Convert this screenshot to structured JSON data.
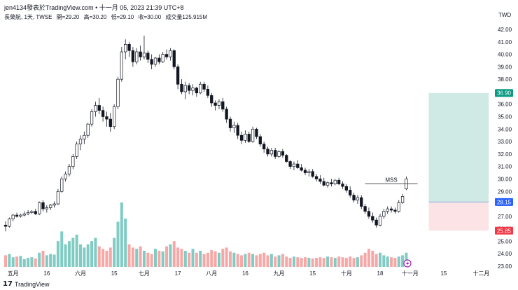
{
  "header": {
    "title": "jen4134發表於TradingView.com • 十一月 05, 2023 21:39 UTC+8"
  },
  "legend": {
    "symbol": "長榮航, 1天, TWSE",
    "open": "開=29.20",
    "high": "高=30.20",
    "low": "低=29.10",
    "close": "收=30.00",
    "volume": "成交量125.915M"
  },
  "currency": "TWD",
  "footer": {
    "logo_glyph": "𝟭𝟳",
    "brand": "TradingView"
  },
  "colors": {
    "up": "#26a69a",
    "down": "#ef5350",
    "body": "#131722",
    "vol_up": "#80cbc4",
    "vol_down": "#f7a8a6",
    "target": "#cfeae4",
    "stop": "#fce4e6",
    "entry_line": "#8fa8d8",
    "label_green": "#089981",
    "label_red": "#f23645",
    "label_blue": "#2962ff"
  },
  "chart_data": {
    "type": "candlestick",
    "ylim": [
      23,
      42
    ],
    "y_ticks": [
      "42.00",
      "41.00",
      "40.00",
      "39.00",
      "38.00",
      "37.00",
      "36.00",
      "35.00",
      "34.00",
      "33.00",
      "32.00",
      "31.00",
      "30.00",
      "29.00",
      "28.00",
      "27.00",
      "26.00",
      "25.00",
      "24.00",
      "23.00"
    ],
    "x_ticks": [
      {
        "label": "五月",
        "i": 2
      },
      {
        "label": "16",
        "i": 11
      },
      {
        "label": "六月",
        "i": 20
      },
      {
        "label": "15",
        "i": 29
      },
      {
        "label": "七月",
        "i": 37
      },
      {
        "label": "17",
        "i": 46
      },
      {
        "label": "八月",
        "i": 55
      },
      {
        "label": "16",
        "i": 64
      },
      {
        "label": "九月",
        "i": 73
      },
      {
        "label": "15",
        "i": 82
      },
      {
        "label": "十月",
        "i": 91
      },
      {
        "label": "18",
        "i": 100
      },
      {
        "label": "十一月",
        "i": 108
      },
      {
        "label": "15",
        "i": 117
      },
      {
        "label": "十二月",
        "i": 127
      }
    ],
    "ohlc": [
      [
        26.3,
        26.6,
        25.8,
        26.2
      ],
      [
        26.2,
        26.9,
        26.1,
        26.8
      ],
      [
        26.8,
        27.2,
        26.6,
        27.1
      ],
      [
        27.1,
        27.3,
        26.9,
        27.0
      ],
      [
        27.0,
        27.2,
        26.9,
        27.1
      ],
      [
        27.1,
        27.4,
        27.0,
        27.2
      ],
      [
        27.2,
        27.5,
        27.1,
        27.3
      ],
      [
        27.3,
        27.5,
        27.2,
        27.4
      ],
      [
        27.4,
        27.6,
        27.1,
        27.2
      ],
      [
        27.2,
        28.2,
        27.1,
        28.1
      ],
      [
        28.1,
        28.3,
        27.4,
        27.6
      ],
      [
        27.6,
        27.9,
        27.3,
        27.7
      ],
      [
        27.7,
        28.0,
        27.5,
        27.9
      ],
      [
        27.9,
        28.2,
        27.7,
        28.0
      ],
      [
        28.0,
        29.2,
        27.9,
        29.0
      ],
      [
        29.0,
        30.2,
        28.9,
        30.0
      ],
      [
        30.0,
        30.6,
        29.8,
        30.4
      ],
      [
        30.4,
        31.2,
        30.2,
        31.0
      ],
      [
        31.0,
        32.0,
        30.8,
        31.8
      ],
      [
        31.8,
        33.0,
        31.6,
        32.8
      ],
      [
        32.8,
        33.5,
        32.3,
        33.2
      ],
      [
        33.2,
        33.8,
        32.8,
        33.5
      ],
      [
        33.5,
        34.5,
        33.3,
        34.4
      ],
      [
        34.4,
        35.6,
        34.2,
        35.4
      ],
      [
        35.4,
        36.2,
        35.0,
        35.9
      ],
      [
        35.9,
        36.5,
        35.2,
        35.5
      ],
      [
        35.5,
        35.8,
        34.6,
        35.0
      ],
      [
        35.0,
        35.4,
        34.2,
        34.8
      ],
      [
        34.8,
        35.3,
        33.8,
        34.2
      ],
      [
        34.2,
        36.0,
        34.0,
        35.8
      ],
      [
        35.8,
        38.2,
        35.6,
        38.0
      ],
      [
        38.0,
        40.6,
        37.8,
        40.2
      ],
      [
        40.2,
        41.2,
        39.6,
        40.8
      ],
      [
        40.8,
        41.0,
        39.8,
        40.3
      ],
      [
        40.3,
        40.6,
        39.0,
        39.4
      ],
      [
        39.4,
        40.5,
        39.2,
        40.2
      ],
      [
        40.2,
        40.7,
        39.5,
        39.8
      ],
      [
        39.8,
        41.5,
        39.6,
        40.1
      ],
      [
        40.1,
        40.3,
        39.3,
        39.6
      ],
      [
        39.6,
        40.0,
        38.8,
        39.2
      ],
      [
        39.2,
        39.8,
        39.0,
        39.7
      ],
      [
        39.7,
        40.0,
        39.2,
        39.4
      ],
      [
        39.4,
        40.2,
        39.3,
        40.0
      ],
      [
        40.0,
        40.4,
        39.6,
        39.8
      ],
      [
        39.8,
        40.5,
        39.5,
        40.3
      ],
      [
        40.3,
        40.4,
        38.8,
        39.0
      ],
      [
        39.0,
        39.2,
        37.2,
        37.6
      ],
      [
        37.6,
        38.0,
        36.8,
        37.0
      ],
      [
        37.0,
        37.8,
        36.4,
        37.5
      ],
      [
        37.5,
        37.7,
        36.8,
        37.1
      ],
      [
        37.1,
        37.6,
        36.7,
        37.3
      ],
      [
        37.3,
        37.4,
        36.6,
        36.9
      ],
      [
        36.9,
        37.8,
        36.8,
        37.6
      ],
      [
        37.6,
        37.8,
        37.0,
        37.2
      ],
      [
        37.2,
        37.5,
        36.5,
        36.7
      ],
      [
        36.7,
        36.9,
        35.8,
        36.1
      ],
      [
        36.1,
        36.3,
        35.5,
        35.9
      ],
      [
        35.9,
        36.4,
        35.6,
        36.2
      ],
      [
        36.2,
        36.5,
        35.4,
        35.6
      ],
      [
        35.6,
        35.8,
        34.5,
        34.8
      ],
      [
        34.8,
        35.0,
        33.8,
        34.1
      ],
      [
        34.1,
        34.6,
        33.7,
        34.3
      ],
      [
        34.3,
        34.5,
        33.2,
        33.5
      ],
      [
        33.5,
        33.8,
        32.8,
        33.1
      ],
      [
        33.1,
        33.9,
        32.9,
        33.6
      ],
      [
        33.6,
        33.8,
        32.9,
        33.0
      ],
      [
        33.0,
        34.2,
        32.9,
        34.0
      ],
      [
        34.0,
        34.1,
        33.2,
        33.4
      ],
      [
        33.4,
        33.6,
        32.6,
        32.8
      ],
      [
        32.8,
        33.0,
        32.1,
        32.4
      ],
      [
        32.4,
        32.6,
        31.8,
        32.0
      ],
      [
        32.0,
        32.5,
        31.8,
        32.3
      ],
      [
        32.3,
        32.5,
        31.6,
        31.8
      ],
      [
        31.8,
        32.3,
        31.7,
        32.2
      ],
      [
        32.2,
        32.4,
        31.7,
        31.9
      ],
      [
        31.9,
        32.0,
        31.3,
        31.4
      ],
      [
        31.4,
        31.5,
        30.8,
        31.0
      ],
      [
        31.0,
        31.4,
        30.7,
        31.2
      ],
      [
        31.2,
        31.5,
        30.8,
        30.9
      ],
      [
        30.9,
        31.2,
        30.6,
        30.7
      ],
      [
        30.7,
        30.9,
        30.3,
        30.5
      ],
      [
        30.5,
        30.8,
        30.2,
        30.6
      ],
      [
        30.6,
        30.8,
        30.1,
        30.2
      ],
      [
        30.2,
        30.4,
        29.8,
        30.0
      ],
      [
        30.0,
        30.3,
        29.6,
        29.8
      ],
      [
        29.8,
        30.1,
        29.4,
        29.5
      ],
      [
        29.5,
        29.8,
        29.3,
        29.7
      ],
      [
        29.7,
        30.0,
        29.4,
        29.6
      ],
      [
        29.6,
        30.0,
        29.5,
        29.9
      ],
      [
        29.9,
        30.1,
        29.5,
        29.6
      ],
      [
        29.6,
        29.8,
        29.2,
        29.4
      ],
      [
        29.4,
        29.6,
        28.9,
        29.1
      ],
      [
        29.1,
        29.4,
        28.5,
        28.7
      ],
      [
        28.7,
        28.9,
        28.1,
        28.3
      ],
      [
        28.3,
        28.7,
        28.0,
        28.5
      ],
      [
        28.5,
        28.7,
        27.6,
        27.8
      ],
      [
        27.8,
        28.0,
        27.2,
        27.4
      ],
      [
        27.4,
        27.7,
        26.8,
        27.0
      ],
      [
        27.0,
        27.3,
        26.5,
        26.7
      ],
      [
        26.7,
        26.9,
        26.1,
        26.3
      ],
      [
        26.3,
        27.2,
        26.2,
        27.0
      ],
      [
        27.0,
        27.6,
        26.8,
        27.4
      ],
      [
        27.4,
        27.8,
        27.2,
        27.6
      ],
      [
        27.6,
        27.8,
        27.3,
        27.5
      ],
      [
        27.5,
        27.7,
        27.2,
        27.4
      ],
      [
        27.4,
        28.3,
        27.3,
        28.1
      ],
      [
        28.1,
        28.8,
        28.0,
        28.6
      ],
      [
        29.2,
        30.2,
        29.1,
        30.0
      ]
    ],
    "volume": [
      0.18,
      0.2,
      0.15,
      0.16,
      0.17,
      0.12,
      0.14,
      0.15,
      0.13,
      0.22,
      0.25,
      0.18,
      0.2,
      0.19,
      0.4,
      0.55,
      0.35,
      0.4,
      0.45,
      0.5,
      0.35,
      0.3,
      0.35,
      0.4,
      0.45,
      0.32,
      0.28,
      0.25,
      0.3,
      0.45,
      0.7,
      1.0,
      0.75,
      0.35,
      0.3,
      0.28,
      0.32,
      0.25,
      0.22,
      0.2,
      0.28,
      0.25,
      0.24,
      0.32,
      0.35,
      0.4,
      0.3,
      0.28,
      0.25,
      0.22,
      0.28,
      0.22,
      0.25,
      0.2,
      0.22,
      0.26,
      0.24,
      0.22,
      0.28,
      0.3,
      0.24,
      0.22,
      0.2,
      0.18,
      0.2,
      0.22,
      0.2,
      0.18,
      0.2,
      0.22,
      0.18,
      0.2,
      0.16,
      0.18,
      0.2,
      0.16,
      0.14,
      0.16,
      0.15,
      0.14,
      0.15,
      0.14,
      0.13,
      0.14,
      0.15,
      0.14,
      0.16,
      0.15,
      0.14,
      0.16,
      0.15,
      0.14,
      0.16,
      0.14,
      0.15,
      0.18,
      0.22,
      0.28,
      0.25,
      0.2,
      0.22,
      0.18,
      0.16,
      0.15,
      0.14,
      0.16,
      0.18,
      0.22,
      0.3
    ],
    "annotation": {
      "label": "MSS",
      "level": 29.6,
      "from_i": 96,
      "to_i": 110
    },
    "position": {
      "target": 36.9,
      "entry": 28.15,
      "stop": 25.85,
      "from_i": 113,
      "to_i": 129
    },
    "price_labels": [
      {
        "value": "36.90",
        "price": 36.9,
        "kind": "green"
      },
      {
        "value": "28.15",
        "price": 28.15,
        "kind": "blue"
      },
      {
        "value": "25.85",
        "price": 25.85,
        "kind": "red"
      }
    ]
  }
}
